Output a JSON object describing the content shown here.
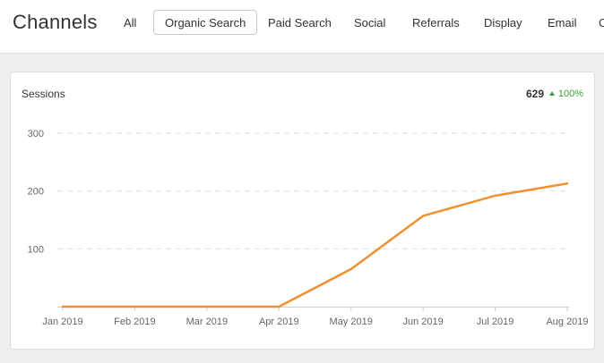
{
  "header": {
    "title": "Channels",
    "tabs": [
      {
        "label": "All",
        "active": false
      },
      {
        "label": "Organic Search",
        "active": true
      },
      {
        "label": "Paid Search",
        "active": false
      },
      {
        "label": "Social",
        "active": false
      },
      {
        "label": "Referrals",
        "active": false
      },
      {
        "label": "Display",
        "active": false
      },
      {
        "label": "Email",
        "active": false
      }
    ]
  },
  "card": {
    "title": "Sessions",
    "total": "629",
    "delta": "100%",
    "delta_direction": "up",
    "delta_color": "#3b9e3b"
  },
  "chart_data": {
    "type": "line",
    "x": [
      "Jan 2019",
      "Feb 2019",
      "Mar 2019",
      "Apr 2019",
      "May 2019",
      "Jun 2019",
      "Jul 2019",
      "Aug 2019"
    ],
    "series": [
      {
        "values": [
          0,
          0,
          0,
          0,
          65,
          157,
          192,
          213
        ],
        "color": "#f0912f"
      }
    ],
    "y_ticks": [
      "100",
      "200",
      "300"
    ],
    "ylim": [
      0,
      300
    ],
    "grid": true
  }
}
